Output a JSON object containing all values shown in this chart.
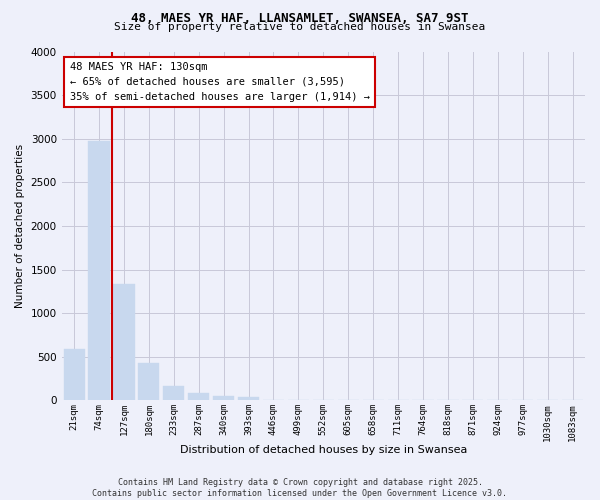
{
  "title_line1": "48, MAES YR HAF, LLANSAMLET, SWANSEA, SA7 9ST",
  "title_line2": "Size of property relative to detached houses in Swansea",
  "xlabel": "Distribution of detached houses by size in Swansea",
  "ylabel": "Number of detached properties",
  "categories": [
    "21sqm",
    "74sqm",
    "127sqm",
    "180sqm",
    "233sqm",
    "287sqm",
    "340sqm",
    "393sqm",
    "446sqm",
    "499sqm",
    "552sqm",
    "605sqm",
    "658sqm",
    "711sqm",
    "764sqm",
    "818sqm",
    "871sqm",
    "924sqm",
    "977sqm",
    "1030sqm",
    "1083sqm"
  ],
  "values": [
    590,
    2970,
    1340,
    430,
    165,
    80,
    50,
    40,
    0,
    0,
    0,
    0,
    0,
    0,
    0,
    0,
    0,
    0,
    0,
    0,
    0
  ],
  "bar_color": "#c8d8ee",
  "bar_edge_color": "#c8d8ee",
  "grid_color": "#c8c8d8",
  "background_color": "#eef0fa",
  "vline_color": "#cc0000",
  "vline_x_idx": 1.5,
  "annotation_text": "48 MAES YR HAF: 130sqm\n← 65% of detached houses are smaller (3,595)\n35% of semi-detached houses are larger (1,914) →",
  "annotation_box_color": "#ffffff",
  "annotation_box_edge_color": "#cc0000",
  "footer_text": "Contains HM Land Registry data © Crown copyright and database right 2025.\nContains public sector information licensed under the Open Government Licence v3.0.",
  "ylim": [
    0,
    4000
  ],
  "yticks": [
    0,
    500,
    1000,
    1500,
    2000,
    2500,
    3000,
    3500,
    4000
  ]
}
